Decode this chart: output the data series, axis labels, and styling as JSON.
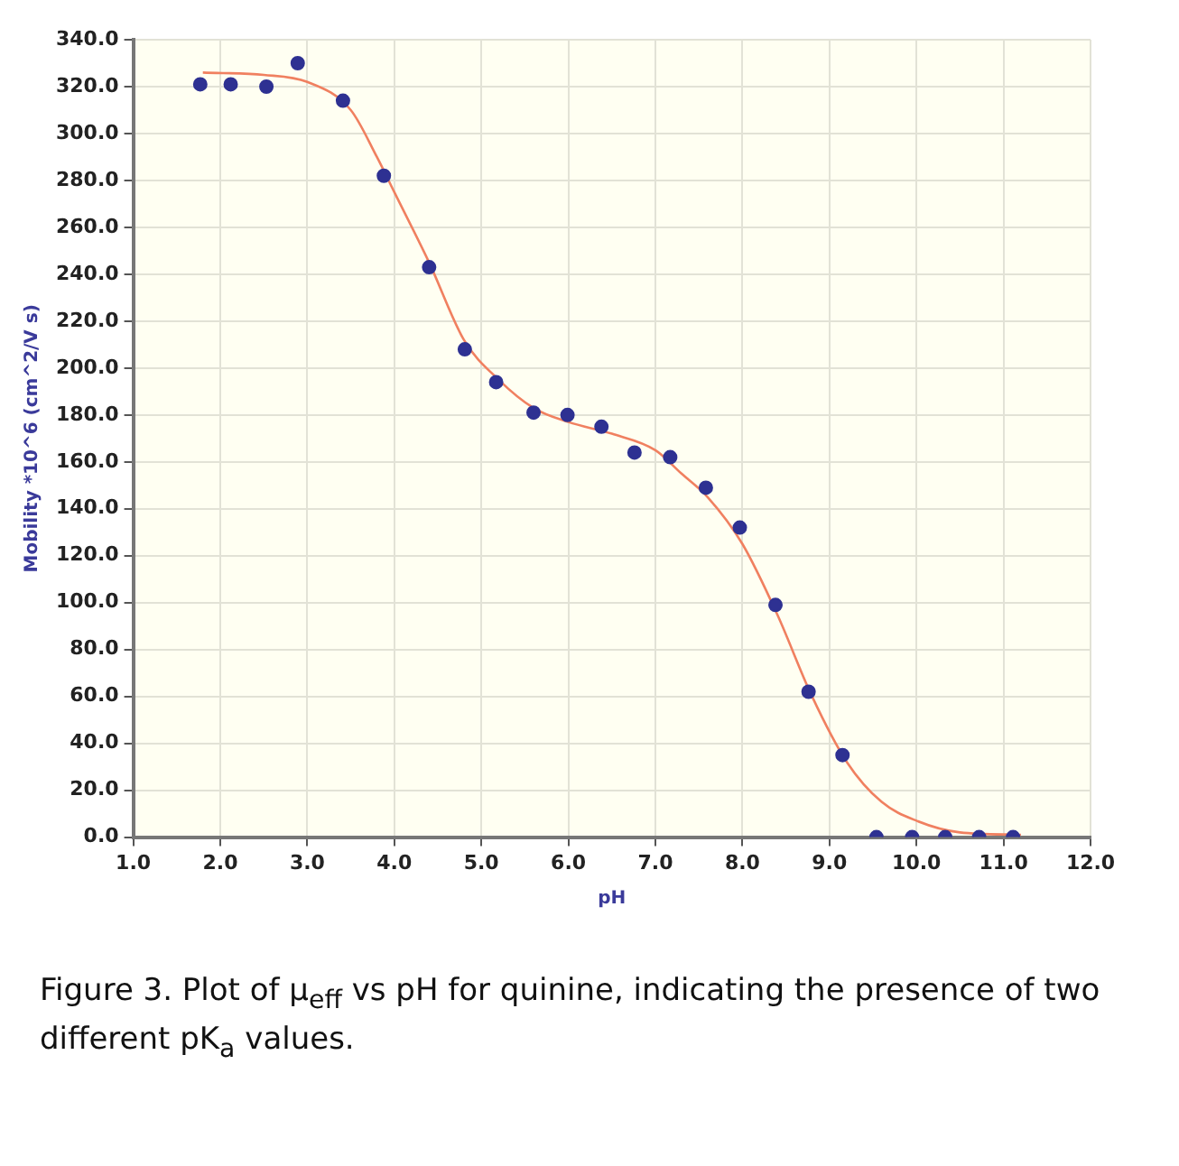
{
  "chart_data": {
    "type": "scatter",
    "xlabel": "pH",
    "ylabel": "Mobility *10^6 (cm^2/V s)",
    "annotations": [
      "Figure 3. Plot of μ$_{eff}$ vs pH for quinine, indicating the presence of two different pK$_{a}$ values."
    ],
    "series": [
      {
        "marker": "circle",
        "color": "#2e3192",
        "x": [
          1.77,
          2.12,
          2.53,
          2.89,
          3.41,
          3.88,
          4.4,
          4.81,
          5.17,
          5.6,
          5.99,
          6.38,
          6.76,
          7.17,
          7.58,
          7.97,
          8.38,
          8.76,
          9.15,
          9.54,
          9.95,
          10.33,
          10.72,
          11.11
        ],
        "values": [
          321,
          321,
          320,
          330,
          314,
          282,
          243,
          208,
          194,
          181,
          180,
          175,
          164,
          162,
          149,
          132,
          99,
          62,
          35,
          0,
          0,
          0,
          0,
          0
        ]
      },
      {
        "type": "line",
        "marker": "none",
        "color": "#f08060",
        "x": [
          1.8,
          2.5,
          3.0,
          3.5,
          3.8,
          4.0,
          4.4,
          4.8,
          5.2,
          5.6,
          6.0,
          6.5,
          7.0,
          7.3,
          7.6,
          8.0,
          8.4,
          8.8,
          9.2,
          9.6,
          10.0,
          10.5,
          11.2
        ],
        "values": [
          326,
          325,
          322,
          310,
          290,
          275,
          245,
          212,
          195,
          183,
          177,
          172,
          165,
          155,
          145,
          125,
          95,
          60,
          32,
          15,
          7,
          2,
          1
        ]
      }
    ],
    "xlim": [
      1,
      12
    ],
    "xticks": [
      {
        "value": 1,
        "label": "1.0"
      },
      {
        "value": 2,
        "label": "2.0"
      },
      {
        "value": 3,
        "label": "3.0"
      },
      {
        "value": 4,
        "label": "4.0"
      },
      {
        "value": 5,
        "label": "5.0"
      },
      {
        "value": 6,
        "label": "6.0"
      },
      {
        "value": 7,
        "label": "7.0"
      },
      {
        "value": 8,
        "label": "8.0"
      },
      {
        "value": 9,
        "label": "9.0"
      },
      {
        "value": 10,
        "label": "10.0"
      },
      {
        "value": 11,
        "label": "11.0"
      },
      {
        "value": 12,
        "label": "12.0"
      }
    ],
    "ylim": [
      0,
      340
    ],
    "yticks": [
      {
        "value": 0,
        "label": "0.0"
      },
      {
        "value": 20,
        "label": "20.0"
      },
      {
        "value": 40,
        "label": "40.0"
      },
      {
        "value": 60,
        "label": "60.0"
      },
      {
        "value": 80,
        "label": "80.0"
      },
      {
        "value": 100,
        "label": "100.0"
      },
      {
        "value": 120,
        "label": "120.0"
      },
      {
        "value": 140,
        "label": "140.0"
      },
      {
        "value": 160,
        "label": "160.0"
      },
      {
        "value": 180,
        "label": "180.0"
      },
      {
        "value": 200,
        "label": "200.0"
      },
      {
        "value": 220,
        "label": "220.0"
      },
      {
        "value": 240,
        "label": "240.0"
      },
      {
        "value": 260,
        "label": "260.0"
      },
      {
        "value": 280,
        "label": "280.0"
      },
      {
        "value": 300,
        "label": "300.0"
      },
      {
        "value": 320,
        "label": "320.0"
      },
      {
        "value": 340,
        "label": "340.0"
      }
    ],
    "grid": true,
    "legend": false,
    "line_style": "solid"
  }
}
